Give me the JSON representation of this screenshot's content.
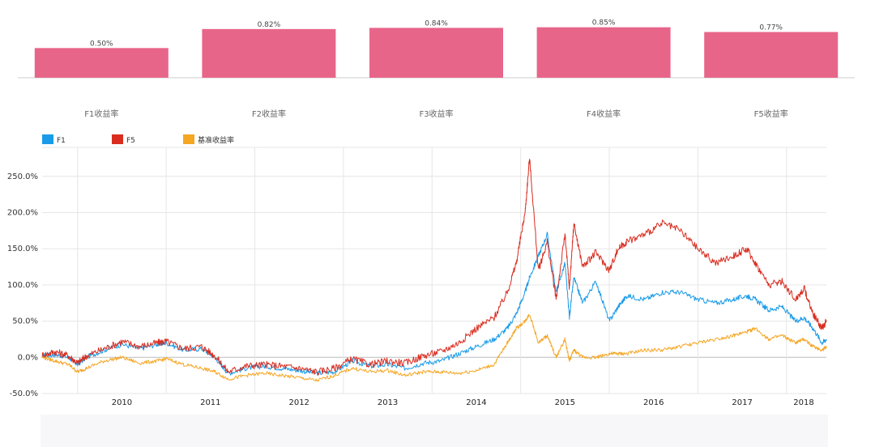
{
  "chart_data": [
    {
      "type": "bar",
      "categories": [
        "F1收益率",
        "F2收益率",
        "F3收益率",
        "F4收益率",
        "F5收益率"
      ],
      "values": [
        0.5,
        0.82,
        0.84,
        0.85,
        0.77
      ],
      "value_labels": [
        "0.50%",
        "0.82%",
        "0.84%",
        "0.85%",
        "0.77%"
      ],
      "ylim": [
        0,
        0.9
      ],
      "bar_color": "#e8658a"
    },
    {
      "type": "line",
      "x_ticks": [
        "2010",
        "2011",
        "2012",
        "2013",
        "2014",
        "2015",
        "2016",
        "2017",
        "2018"
      ],
      "x_range": [
        2009.6,
        2018.45
      ],
      "y_ticks": [
        "250.0%",
        "200.0%",
        "150.0%",
        "100.0%",
        "50.0%",
        "0.0%",
        "-50.0%"
      ],
      "y_tick_values": [
        250,
        200,
        150,
        100,
        50,
        0,
        -50
      ],
      "ylim": [
        -50,
        290
      ],
      "grid": true,
      "legend_position": "top-left",
      "series": [
        {
          "name": "F1",
          "color": "#1a9be8",
          "x": [
            2009.6,
            2009.75,
            2009.9,
            2010.0,
            2010.1,
            2010.3,
            2010.5,
            2010.7,
            2010.9,
            2011.0,
            2011.2,
            2011.4,
            2011.55,
            2011.7,
            2011.9,
            2012.1,
            2012.3,
            2012.5,
            2012.7,
            2012.9,
            2013.1,
            2013.3,
            2013.5,
            2013.7,
            2013.9,
            2014.1,
            2014.3,
            2014.5,
            2014.7,
            2014.85,
            2014.95,
            2015.05,
            2015.1,
            2015.2,
            2015.3,
            2015.4,
            2015.5,
            2015.55,
            2015.6,
            2015.7,
            2015.85,
            2016.0,
            2016.1,
            2016.2,
            2016.4,
            2016.6,
            2016.8,
            2017.0,
            2017.2,
            2017.4,
            2017.55,
            2017.65,
            2017.8,
            2017.95,
            2018.1,
            2018.2,
            2018.3,
            2018.4,
            2018.45
          ],
          "y": [
            2,
            4,
            0,
            -10,
            0,
            10,
            18,
            12,
            18,
            20,
            10,
            12,
            0,
            -22,
            -15,
            -12,
            -15,
            -18,
            -22,
            -20,
            -5,
            -12,
            -10,
            -15,
            -8,
            -5,
            5,
            15,
            25,
            40,
            60,
            90,
            110,
            140,
            170,
            90,
            130,
            55,
            110,
            75,
            105,
            50,
            70,
            85,
            80,
            90,
            90,
            80,
            75,
            80,
            85,
            80,
            65,
            70,
            50,
            55,
            40,
            20,
            25
          ]
        },
        {
          "name": "F5",
          "color": "#d92d20",
          "x": [
            2009.6,
            2009.75,
            2009.9,
            2010.0,
            2010.1,
            2010.3,
            2010.5,
            2010.7,
            2010.9,
            2011.0,
            2011.2,
            2011.4,
            2011.55,
            2011.7,
            2011.9,
            2012.1,
            2012.3,
            2012.5,
            2012.7,
            2012.9,
            2013.1,
            2013.3,
            2013.5,
            2013.7,
            2013.9,
            2014.1,
            2014.3,
            2014.5,
            2014.7,
            2014.85,
            2014.95,
            2015.05,
            2015.1,
            2015.2,
            2015.3,
            2015.4,
            2015.5,
            2015.55,
            2015.6,
            2015.7,
            2015.85,
            2016.0,
            2016.1,
            2016.2,
            2016.4,
            2016.6,
            2016.8,
            2017.0,
            2017.2,
            2017.4,
            2017.55,
            2017.65,
            2017.8,
            2017.95,
            2018.1,
            2018.2,
            2018.3,
            2018.4,
            2018.45
          ],
          "y": [
            3,
            8,
            2,
            -8,
            2,
            12,
            22,
            15,
            20,
            22,
            12,
            15,
            2,
            -20,
            -12,
            -10,
            -12,
            -15,
            -20,
            -15,
            -2,
            -10,
            -5,
            -8,
            2,
            8,
            20,
            40,
            55,
            90,
            130,
            200,
            275,
            120,
            160,
            80,
            170,
            95,
            185,
            125,
            145,
            120,
            150,
            160,
            170,
            185,
            175,
            150,
            130,
            140,
            150,
            130,
            100,
            105,
            80,
            95,
            60,
            40,
            50
          ]
        },
        {
          "name": "基准收益率",
          "color": "#f5a623",
          "x": [
            2009.6,
            2009.75,
            2009.9,
            2010.0,
            2010.1,
            2010.3,
            2010.5,
            2010.7,
            2010.9,
            2011.0,
            2011.2,
            2011.4,
            2011.55,
            2011.7,
            2011.9,
            2012.1,
            2012.3,
            2012.5,
            2012.7,
            2012.9,
            2013.1,
            2013.3,
            2013.5,
            2013.7,
            2013.9,
            2014.1,
            2014.3,
            2014.5,
            2014.7,
            2014.85,
            2014.95,
            2015.05,
            2015.1,
            2015.2,
            2015.3,
            2015.4,
            2015.5,
            2015.55,
            2015.6,
            2015.7,
            2015.85,
            2016.0,
            2016.1,
            2016.2,
            2016.4,
            2016.6,
            2016.8,
            2017.0,
            2017.2,
            2017.4,
            2017.55,
            2017.65,
            2017.8,
            2017.95,
            2018.1,
            2018.2,
            2018.3,
            2018.4,
            2018.45
          ],
          "y": [
            0,
            -5,
            -10,
            -20,
            -15,
            -5,
            0,
            -8,
            -5,
            -2,
            -10,
            -15,
            -20,
            -30,
            -25,
            -22,
            -25,
            -28,
            -32,
            -25,
            -15,
            -20,
            -18,
            -25,
            -20,
            -20,
            -22,
            -18,
            -10,
            20,
            40,
            50,
            60,
            20,
            30,
            0,
            25,
            -5,
            10,
            0,
            0,
            5,
            5,
            5,
            10,
            10,
            15,
            20,
            25,
            30,
            35,
            40,
            25,
            30,
            20,
            25,
            15,
            10,
            15
          ]
        }
      ]
    }
  ]
}
